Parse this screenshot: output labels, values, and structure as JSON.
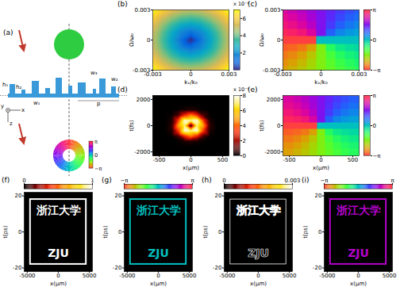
{
  "chart_data": [
    {
      "panel_label": "(b)",
      "type": "heatmap",
      "xlabel": "kₓ/k₀",
      "ylabel": "Ω/ω₀",
      "xlim": [
        -0.003,
        0.003
      ],
      "ylim": [
        -0.003,
        0.003
      ],
      "xticks": [
        -0.003,
        0,
        0.003
      ],
      "yticks": [
        -0.003,
        0,
        0.003
      ],
      "x": [
        -0.003,
        -0.00225,
        -0.0015,
        -0.00075,
        0,
        0.00075,
        0.0015,
        0.00225,
        0.003
      ],
      "y": [
        -0.003,
        -0.00225,
        -0.0015,
        -0.00075,
        0,
        0.00075,
        0.0015,
        0.00225,
        0.003
      ],
      "values": [
        [
          7.0,
          6.19,
          5.53,
          5.1,
          4.95,
          5.1,
          5.53,
          6.19,
          7.0
        ],
        [
          6.19,
          5.25,
          4.46,
          3.91,
          3.71,
          3.91,
          4.46,
          5.25,
          6.19
        ],
        [
          5.53,
          4.46,
          3.5,
          2.77,
          2.48,
          2.77,
          3.5,
          4.46,
          5.53
        ],
        [
          5.1,
          3.91,
          2.77,
          1.75,
          1.24,
          1.75,
          2.77,
          3.91,
          5.1
        ],
        [
          4.95,
          3.71,
          2.48,
          1.24,
          0,
          1.24,
          2.48,
          3.71,
          4.95
        ],
        [
          5.1,
          3.91,
          2.77,
          1.75,
          1.24,
          1.75,
          2.77,
          3.91,
          5.1
        ],
        [
          5.53,
          4.46,
          3.5,
          2.77,
          2.48,
          2.77,
          3.5,
          4.46,
          5.53
        ],
        [
          6.19,
          5.25,
          4.46,
          3.91,
          3.71,
          3.91,
          4.46,
          5.25,
          6.19
        ],
        [
          7.0,
          6.19,
          5.53,
          5.1,
          4.95,
          5.1,
          5.53,
          6.19,
          7.0
        ]
      ],
      "colorbar_lim": [
        0,
        7
      ],
      "colorbar_ticks": [
        2,
        4,
        6
      ],
      "colorbar_multiplier": "x 10⁻³"
    },
    {
      "panel_label": "(c)",
      "type": "heatmap",
      "xlabel": "kₓ/k₀",
      "ylabel": "Ω/ω₀",
      "xlim": [
        -0.003,
        0.003
      ],
      "ylim": [
        -0.003,
        0.003
      ],
      "xticks": [
        -0.003,
        0,
        0.003
      ],
      "yticks": [
        -0.003,
        0,
        0.003
      ],
      "x": [
        -0.003,
        -0.00225,
        -0.0015,
        -0.00075,
        0,
        0.00075,
        0.0015,
        0.00225,
        0.003
      ],
      "y": [
        -0.003,
        -0.00225,
        -0.0015,
        -0.00075,
        0,
        0.00075,
        0.0015,
        0.00225,
        0.003
      ],
      "values": [
        [
          -2.356,
          -2.214,
          -2.034,
          -1.816,
          -1.571,
          -1.326,
          -1.107,
          -0.927,
          -0.785
        ],
        [
          -2.498,
          -2.356,
          -2.159,
          -1.893,
          -1.571,
          -1.249,
          -0.983,
          -0.785,
          -0.644
        ],
        [
          -2.678,
          -2.554,
          -2.356,
          -2.034,
          -1.571,
          -1.107,
          -0.785,
          -0.588,
          -0.464
        ],
        [
          -2.897,
          -2.82,
          -2.678,
          -2.356,
          -1.571,
          -0.785,
          -0.464,
          -0.322,
          -0.245
        ],
        [
          3.142,
          3.142,
          3.142,
          3.142,
          0,
          0,
          0,
          0,
          0
        ],
        [
          2.897,
          2.82,
          2.678,
          2.356,
          1.571,
          0.785,
          0.464,
          0.322,
          0.245
        ],
        [
          2.678,
          2.554,
          2.356,
          2.034,
          1.571,
          1.107,
          0.785,
          0.588,
          0.464
        ],
        [
          2.498,
          2.356,
          2.159,
          1.893,
          1.571,
          1.249,
          0.983,
          0.785,
          0.644
        ],
        [
          2.356,
          2.214,
          2.034,
          1.816,
          1.571,
          1.326,
          1.107,
          0.927,
          0.785
        ]
      ],
      "colorbar_lim": [
        -3.1416,
        3.1416
      ],
      "colorbar_ticks": [
        {
          "value": -3.1416,
          "label": "−π"
        },
        0,
        {
          "value": 3.1416,
          "label": "π"
        }
      ]
    },
    {
      "panel_label": "(d)",
      "type": "heatmap",
      "xlabel": "x(μm)",
      "ylabel": "t(fs)",
      "xlim": [
        -600,
        600
      ],
      "ylim": [
        -2300,
        2300
      ],
      "xticks": [
        -500,
        0,
        500
      ],
      "yticks": [
        -2000,
        0,
        2000
      ],
      "x": [
        -500,
        -400,
        -300,
        -200,
        -100,
        0,
        100,
        200,
        300,
        400,
        500
      ],
      "y": [
        -2000,
        -1600,
        -1200,
        -800,
        -400,
        0,
        400,
        800,
        1200,
        1600,
        2000
      ],
      "values": [
        [
          0,
          0,
          0,
          0,
          0,
          0,
          0,
          0,
          0,
          0,
          0
        ],
        [
          0,
          0,
          0,
          0,
          0,
          0.01,
          0,
          0,
          0,
          0,
          0
        ],
        [
          0,
          0,
          0,
          0.05,
          0.24,
          0.39,
          0.24,
          0.05,
          0,
          0,
          0
        ],
        [
          0,
          0,
          0.06,
          0.78,
          2.93,
          4.3,
          2.93,
          0.78,
          0.06,
          0,
          0
        ],
        [
          0,
          0.01,
          0.33,
          3.23,
          7.82,
          7.34,
          7.82,
          3.23,
          0.33,
          0.01,
          0
        ],
        [
          0,
          0.02,
          0.56,
          4.83,
          7.12,
          0,
          7.12,
          4.83,
          0.56,
          0.02,
          0
        ],
        [
          0,
          0.01,
          0.33,
          3.23,
          7.82,
          7.34,
          7.82,
          3.23,
          0.33,
          0.01,
          0
        ],
        [
          0,
          0,
          0.06,
          0.78,
          2.93,
          4.3,
          2.93,
          0.78,
          0.06,
          0,
          0
        ],
        [
          0,
          0,
          0,
          0.05,
          0.24,
          0.39,
          0.24,
          0.05,
          0,
          0,
          0
        ],
        [
          0,
          0,
          0,
          0,
          0,
          0.01,
          0,
          0,
          0,
          0,
          0
        ],
        [
          0,
          0,
          0,
          0,
          0,
          0,
          0,
          0,
          0,
          0,
          0
        ]
      ],
      "colorbar_lim": [
        0,
        8
      ],
      "colorbar_ticks": [
        0,
        2,
        4,
        6,
        8
      ],
      "colorbar_multiplier": "x 10⁻⁴"
    },
    {
      "panel_label": "(e)",
      "type": "heatmap",
      "xlabel": "x(μm)",
      "ylabel": "t(fs)",
      "xlim": [
        -600,
        600
      ],
      "ylim": [
        -2300,
        2300
      ],
      "xticks": [
        -500,
        0,
        500
      ],
      "yticks": [
        -2000,
        0,
        2000
      ],
      "x": [
        -500,
        -375,
        -250,
        -125,
        0,
        125,
        250,
        375,
        500
      ],
      "y": [
        -2000,
        -1500,
        -1000,
        -500,
        0,
        500,
        1000,
        1500,
        2000
      ],
      "values": [
        [
          -2.356,
          -2.214,
          -2.034,
          -1.816,
          -1.571,
          -1.326,
          -1.107,
          -0.927,
          -0.785
        ],
        [
          -2.498,
          -2.356,
          -2.159,
          -1.893,
          -1.571,
          -1.249,
          -0.983,
          -0.785,
          -0.644
        ],
        [
          -2.678,
          -2.554,
          -2.356,
          -2.034,
          -1.571,
          -1.107,
          -0.785,
          -0.588,
          -0.464
        ],
        [
          -2.897,
          -2.82,
          -2.678,
          -2.356,
          -1.571,
          -0.785,
          -0.464,
          -0.322,
          -0.245
        ],
        [
          3.142,
          3.142,
          3.142,
          3.142,
          0,
          0,
          0,
          0,
          0
        ],
        [
          2.897,
          2.82,
          2.678,
          2.356,
          1.571,
          0.785,
          0.464,
          0.322,
          0.245
        ],
        [
          2.678,
          2.554,
          2.356,
          2.034,
          1.571,
          1.107,
          0.785,
          0.588,
          0.464
        ],
        [
          2.498,
          2.356,
          2.159,
          1.893,
          1.571,
          1.249,
          0.983,
          0.785,
          0.644
        ],
        [
          2.356,
          2.214,
          2.034,
          1.816,
          1.571,
          1.326,
          1.107,
          0.927,
          0.785
        ]
      ],
      "colorbar_lim": [
        -3.1416,
        3.1416
      ],
      "colorbar_ticks": [
        {
          "value": -3.1416,
          "label": "−π"
        },
        0,
        {
          "value": 3.1416,
          "label": "π"
        }
      ]
    },
    {
      "panel_label": "(f)",
      "type": "image",
      "xlabel": "x(μm)",
      "ylabel": "t(ps)",
      "xlim": [
        -5500,
        5500
      ],
      "ylim": [
        -22,
        22
      ],
      "xticks": [
        -5000,
        0,
        5000
      ],
      "yticks": [
        -20,
        0,
        20
      ],
      "image": {
        "texts": [
          {
            "text": "浙江大学",
            "x": 0,
            "t": 12
          },
          {
            "text": "ZJU",
            "x": 0,
            "t": -12
          }
        ],
        "value": 1,
        "border": {
          "x": [
            -4500,
            4500
          ],
          "t": [
            -18,
            18
          ]
        }
      },
      "colorbar_lim": [
        0,
        1
      ],
      "colorbar_ticks": [
        0,
        1
      ]
    },
    {
      "panel_label": "(g)",
      "type": "image",
      "xlabel": "x(μm)",
      "ylabel": "t(ps)",
      "xlim": [
        -5500,
        5500
      ],
      "ylim": [
        -22,
        22
      ],
      "xticks": [
        -5000,
        0,
        5000
      ],
      "yticks": [
        -20,
        0,
        20
      ],
      "image": {
        "texts": [
          {
            "text": "浙江大学",
            "x": 0,
            "t": 12
          },
          {
            "text": "ZJU",
            "x": 0,
            "t": -12
          }
        ],
        "value": 0,
        "border": {
          "x": [
            -4500,
            4500
          ],
          "t": [
            -18,
            18
          ]
        }
      },
      "colorbar_lim": [
        -3.1416,
        3.1416
      ],
      "colorbar_ticks": [
        {
          "value": -3.1416,
          "label": "−π"
        },
        {
          "value": 3.1416,
          "label": "π"
        }
      ]
    },
    {
      "panel_label": "(h)",
      "type": "edge_image",
      "xlabel": "x(μm)",
      "ylabel": "t(ps)",
      "xlim": [
        -5500,
        5500
      ],
      "ylim": [
        -22,
        22
      ],
      "xticks": [
        -5000,
        0,
        5000
      ],
      "yticks": [
        -20,
        0,
        20
      ],
      "image": {
        "texts": [
          {
            "text": "浙江大学",
            "x": 0,
            "t": 12
          },
          {
            "text": "ZJU",
            "x": 0,
            "t": -12
          }
        ],
        "value": 0.003,
        "border": {
          "x": [
            -4500,
            4500
          ],
          "t": [
            -18,
            18
          ]
        }
      },
      "colorbar_lim": [
        0,
        0.003
      ],
      "colorbar_ticks": [
        0,
        0.003
      ]
    },
    {
      "panel_label": "(i)",
      "type": "image",
      "xlabel": "x(μm)",
      "ylabel": "t(ps)",
      "xlim": [
        -5500,
        5500
      ],
      "ylim": [
        -22,
        22
      ],
      "xticks": [
        -5000,
        0,
        5000
      ],
      "yticks": [
        -20,
        0,
        20
      ],
      "image": {
        "texts": [
          {
            "text": "浙江大学",
            "x": 0,
            "t": 12
          },
          {
            "text": "ZJU",
            "x": 0,
            "t": -12
          }
        ],
        "value": 2.0,
        "border": {
          "x": [
            -4500,
            4500
          ],
          "t": [
            -18,
            18
          ]
        }
      },
      "colorbar_lim": [
        -3.1416,
        3.1416
      ],
      "colorbar_ticks": [
        {
          "value": -3.1416,
          "label": "−π"
        },
        {
          "value": 3.1416,
          "label": "π"
        }
      ]
    }
  ],
  "diagram": {
    "label": "(a)",
    "grating_labels": [
      "h₁",
      "h₂",
      "w₁",
      "w₃",
      "w₂",
      "p"
    ],
    "axis_labels": [
      "y",
      "x",
      "z"
    ],
    "phase_ticks": [
      "π",
      "0",
      "−π"
    ]
  }
}
